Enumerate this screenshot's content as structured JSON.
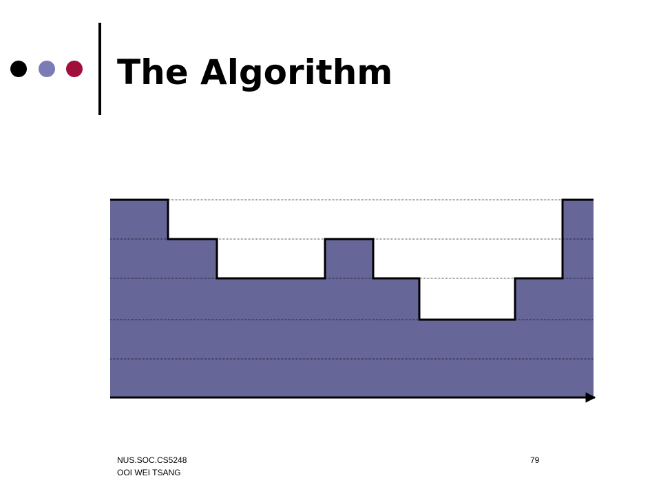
{
  "header": {
    "title": "The Algorithm"
  },
  "footer": {
    "course": "NUS.SOC.CS5248",
    "author": "OOI WEI TSANG",
    "page": "79"
  }
}
